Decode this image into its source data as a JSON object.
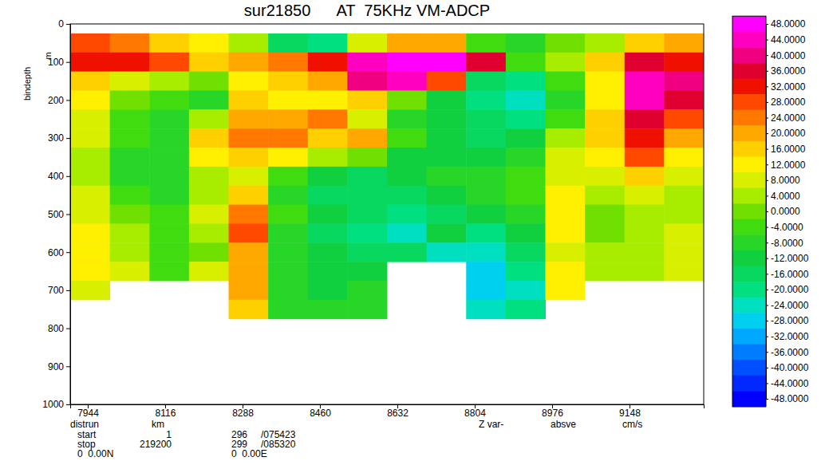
{
  "chart_data": {
    "type": "heatmap",
    "title": "sur21850      AT  75KHz VM-ADCP",
    "xlabel": "distrun",
    "xunit": "km",
    "ylabel": "bindepth",
    "yunit": "m",
    "annotations": [
      "Z var-",
      "absve",
      "cm/s"
    ],
    "footer": [
      [
        "start",
        "1",
        "296",
        "/075423"
      ],
      [
        "stop",
        "219200",
        "299",
        "/085320"
      ],
      [
        "0  0.00N",
        "0  0.00E"
      ]
    ],
    "xlim": [
      7905,
      9313
    ],
    "xticks": [
      7944,
      8116,
      8288,
      8460,
      8632,
      8804,
      8976,
      9148
    ],
    "ylim": [
      1000,
      0
    ],
    "yticks": [
      0,
      100,
      200,
      300,
      400,
      500,
      600,
      700,
      800,
      900,
      1000
    ],
    "x": [
      7949,
      8037,
      8125,
      8213,
      8301,
      8389,
      8477,
      8565,
      8653,
      8741,
      8829,
      8917,
      9005,
      9093,
      9181,
      9269
    ],
    "y": [
      50,
      100,
      150,
      200,
      250,
      300,
      350,
      400,
      450,
      500,
      550,
      600,
      650,
      700,
      750
    ],
    "values": [
      [
        28,
        24,
        16,
        12,
        4,
        -16,
        -20,
        8,
        20,
        20,
        -4,
        -8,
        0,
        4,
        16,
        20
      ],
      [
        32,
        32,
        28,
        16,
        20,
        24,
        32,
        44,
        48,
        48,
        36,
        -4,
        4,
        16,
        36,
        32
      ],
      [
        16,
        8,
        4,
        0,
        12,
        16,
        20,
        40,
        44,
        28,
        -16,
        -20,
        -4,
        12,
        44,
        40
      ],
      [
        12,
        0,
        -4,
        -8,
        16,
        12,
        12,
        16,
        0,
        -12,
        -20,
        -24,
        -8,
        12,
        44,
        36
      ],
      [
        8,
        -4,
        -8,
        4,
        20,
        20,
        24,
        8,
        -8,
        -12,
        -16,
        -20,
        -4,
        16,
        36,
        28
      ],
      [
        8,
        -4,
        -8,
        16,
        24,
        24,
        16,
        20,
        -4,
        -12,
        -16,
        -12,
        4,
        16,
        32,
        20
      ],
      [
        4,
        -8,
        -8,
        12,
        16,
        12,
        4,
        0,
        -12,
        -12,
        -12,
        -8,
        8,
        12,
        28,
        12
      ],
      [
        4,
        -8,
        -8,
        4,
        8,
        -4,
        -12,
        -16,
        -12,
        -8,
        -8,
        -4,
        8,
        8,
        16,
        8
      ],
      [
        8,
        -4,
        -8,
        4,
        16,
        -8,
        -16,
        -16,
        -16,
        -12,
        -8,
        -4,
        12,
        4,
        8,
        4
      ],
      [
        8,
        0,
        -4,
        8,
        24,
        -4,
        -12,
        -16,
        -20,
        -16,
        -12,
        -8,
        12,
        0,
        4,
        4
      ],
      [
        12,
        4,
        -4,
        4,
        28,
        -8,
        -16,
        -20,
        -24,
        -12,
        -20,
        -12,
        12,
        0,
        4,
        8
      ],
      [
        12,
        4,
        -4,
        0,
        20,
        -8,
        -12,
        -16,
        -16,
        -24,
        -24,
        -16,
        8,
        4,
        4,
        8
      ],
      [
        12,
        8,
        -4,
        8,
        20,
        -8,
        -12,
        -12,
        null,
        null,
        -28,
        -20,
        12,
        4,
        4,
        8
      ],
      [
        8,
        null,
        null,
        null,
        20,
        -8,
        -12,
        -8,
        null,
        null,
        -28,
        -24,
        12,
        null,
        null,
        null
      ],
      [
        null,
        null,
        null,
        null,
        16,
        -8,
        -8,
        -8,
        null,
        null,
        -24,
        -20,
        null,
        null,
        null,
        null
      ]
    ],
    "colorbar": {
      "range": [
        -48,
        48
      ],
      "ticks": [
        {
          "value": 48,
          "label": "48.0000"
        },
        {
          "value": 44,
          "label": "44.0000"
        },
        {
          "value": 40,
          "label": "40.0000"
        },
        {
          "value": 36,
          "label": "36.0000"
        },
        {
          "value": 32,
          "label": "32.0000"
        },
        {
          "value": 28,
          "label": "28.0000"
        },
        {
          "value": 24,
          "label": "24.0000"
        },
        {
          "value": 20,
          "label": "20.0000"
        },
        {
          "value": 16,
          "label": "16.0000"
        },
        {
          "value": 12,
          "label": "12.0000"
        },
        {
          "value": 8,
          "label": "8.0000"
        },
        {
          "value": 4,
          "label": "4.0000"
        },
        {
          "value": 0,
          "label": "0.0000"
        },
        {
          "value": -4,
          "label": "-4.0000"
        },
        {
          "value": -8,
          "label": "-8.0000"
        },
        {
          "value": -12,
          "label": "-12.0000"
        },
        {
          "value": -16,
          "label": "-16.0000"
        },
        {
          "value": -20,
          "label": "-20.0000"
        },
        {
          "value": -24,
          "label": "-24.0000"
        },
        {
          "value": -28,
          "label": "-28.0000"
        },
        {
          "value": -32,
          "label": "-32.0000"
        },
        {
          "value": -36,
          "label": "-36.0000"
        },
        {
          "value": -40,
          "label": "-40.0000"
        },
        {
          "value": -44,
          "label": "-44.0000"
        },
        {
          "value": -48,
          "label": "-48.0000"
        }
      ]
    }
  }
}
